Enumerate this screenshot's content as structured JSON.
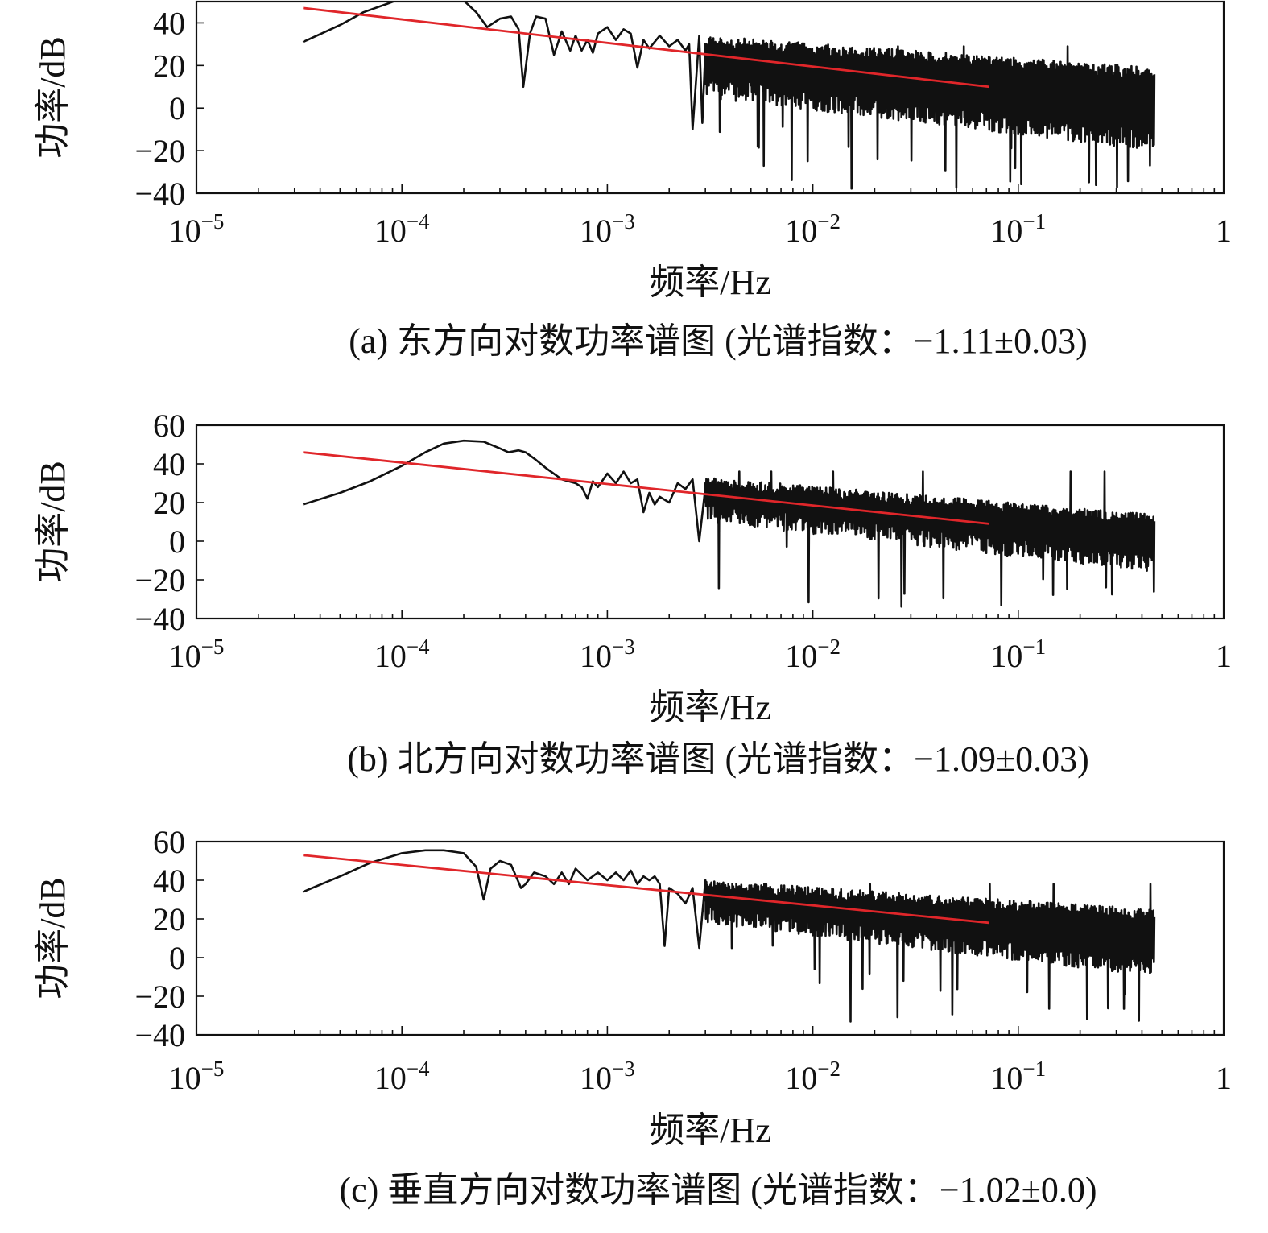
{
  "chart_data": [
    {
      "type": "line",
      "panel": "a",
      "caption": "(a) 东方向对数功率谱图 (光谱指数：−1.11±0.03)",
      "xlabel": "频率/Hz",
      "ylabel": "功率/dB",
      "xscale": "log",
      "xlim": [
        1e-05,
        1
      ],
      "ylim": [
        -40,
        50
      ],
      "xticks": [
        {
          "value": 1e-05,
          "base": "10",
          "exp": "−5"
        },
        {
          "value": 0.0001,
          "base": "10",
          "exp": "−4"
        },
        {
          "value": 0.001,
          "base": "10",
          "exp": "−3"
        },
        {
          "value": 0.01,
          "base": "10",
          "exp": "−2"
        },
        {
          "value": 0.1,
          "base": "10",
          "exp": "−1"
        },
        {
          "value": 1,
          "base": "1",
          "exp": ""
        }
      ],
      "yticks": [
        -40,
        -20,
        0,
        20,
        40
      ],
      "ytick_labels": [
        "−40",
        "−20",
        "0",
        "20",
        "40"
      ],
      "spectrum_color": "#111111",
      "fit_color": "#e0262a",
      "series": [
        {
          "role": "spectrum",
          "x": [
            3.3e-05,
            5e-05,
            6.5e-05,
            8.5e-05,
            0.0001,
            0.00012,
            0.00014,
            0.00017,
            0.0002,
            0.00023,
            0.00026,
            0.0003,
            0.00034,
            0.00037,
            0.00039,
            0.00042,
            0.00045,
            0.0005,
            0.00055,
            0.0006,
            0.00066,
            0.0007,
            0.00075,
            0.0008,
            0.00085,
            0.0009,
            0.001,
            0.0011,
            0.0012,
            0.0013,
            0.0014,
            0.0015,
            0.0016,
            0.0018,
            0.002,
            0.0022,
            0.0024,
            0.0025,
            0.0026,
            0.0028,
            0.0029,
            0.003
          ],
          "y": [
            31,
            39,
            45,
            49,
            51.5,
            52.5,
            53,
            52.5,
            50.5,
            45,
            38,
            42,
            43,
            37,
            10,
            35,
            43,
            42,
            25,
            36,
            27,
            34,
            27,
            32,
            26,
            35,
            38,
            32,
            37,
            35,
            19,
            32,
            28,
            34,
            29,
            32,
            27,
            30,
            -10,
            34,
            -7,
            28
          ]
        },
        {
          "role": "power-law fit",
          "x": [
            3.3e-05,
            0.072
          ],
          "y": [
            47,
            10
          ]
        }
      ],
      "noise_band": {
        "x_range": [
          0.003,
          0.46
        ],
        "upper_start": 34,
        "upper_end": 19,
        "lower_start": 5,
        "lower_end": -20,
        "max_peak": 29,
        "min_dip": -33
      }
    },
    {
      "type": "line",
      "panel": "b",
      "caption": "(b) 北方向对数功率谱图 (光谱指数：−1.09±0.03)",
      "xlabel": "频率/Hz",
      "ylabel": "功率/dB",
      "xscale": "log",
      "xlim": [
        1e-05,
        1
      ],
      "ylim": [
        -40,
        60
      ],
      "xticks": [
        {
          "value": 1e-05,
          "base": "10",
          "exp": "−5"
        },
        {
          "value": 0.0001,
          "base": "10",
          "exp": "−4"
        },
        {
          "value": 0.001,
          "base": "10",
          "exp": "−3"
        },
        {
          "value": 0.01,
          "base": "10",
          "exp": "−2"
        },
        {
          "value": 0.1,
          "base": "10",
          "exp": "−1"
        },
        {
          "value": 1,
          "base": "1",
          "exp": ""
        }
      ],
      "yticks": [
        -40,
        -20,
        0,
        20,
        40,
        60
      ],
      "ytick_labels": [
        "−40",
        "−20",
        "0",
        "20",
        "40",
        "60"
      ],
      "spectrum_color": "#111111",
      "fit_color": "#e0262a",
      "series": [
        {
          "role": "spectrum",
          "x": [
            3.3e-05,
            5e-05,
            7e-05,
            0.0001,
            0.00013,
            0.00016,
            0.0002,
            0.00025,
            0.0003,
            0.00033,
            0.00037,
            0.0004,
            0.00045,
            0.0005,
            0.0006,
            0.0007,
            0.00075,
            0.0008,
            0.00085,
            0.0009,
            0.001,
            0.0011,
            0.0012,
            0.0013,
            0.0014,
            0.0015,
            0.0016,
            0.0017,
            0.0018,
            0.002,
            0.0022,
            0.0024,
            0.0026,
            0.0028,
            0.003
          ],
          "y": [
            19,
            25,
            31,
            39,
            46,
            50.5,
            52,
            51.5,
            48,
            46,
            47,
            46,
            42,
            38,
            32,
            30,
            28,
            22,
            31,
            28,
            35,
            30,
            36,
            30,
            32,
            15,
            25,
            19,
            23,
            20,
            30,
            27,
            32,
            0,
            28
          ]
        },
        {
          "role": "power-law fit",
          "x": [
            3.3e-05,
            0.072
          ],
          "y": [
            46,
            9
          ]
        }
      ],
      "noise_band": {
        "x_range": [
          0.003,
          0.46
        ],
        "upper_start": 33,
        "upper_end": 14,
        "lower_start": 10,
        "lower_end": -16,
        "max_peak": 36,
        "min_dip": -29
      }
    },
    {
      "type": "line",
      "panel": "c",
      "caption": "(c) 垂直方向对数功率谱图 (光谱指数：−1.02±0.0)",
      "xlabel": "频率/Hz",
      "ylabel": "功率/dB",
      "xscale": "log",
      "xlim": [
        1e-05,
        1
      ],
      "ylim": [
        -40,
        60
      ],
      "xticks": [
        {
          "value": 1e-05,
          "base": "10",
          "exp": "−5"
        },
        {
          "value": 0.0001,
          "base": "10",
          "exp": "−4"
        },
        {
          "value": 0.001,
          "base": "10",
          "exp": "−3"
        },
        {
          "value": 0.01,
          "base": "10",
          "exp": "−2"
        },
        {
          "value": 0.1,
          "base": "10",
          "exp": "−1"
        },
        {
          "value": 1,
          "base": "1",
          "exp": ""
        }
      ],
      "yticks": [
        -40,
        -20,
        0,
        20,
        40,
        60
      ],
      "ytick_labels": [
        "−40",
        "−20",
        "0",
        "20",
        "40",
        "60"
      ],
      "spectrum_color": "#111111",
      "fit_color": "#e0262a",
      "series": [
        {
          "role": "spectrum",
          "x": [
            3.3e-05,
            5e-05,
            7e-05,
            0.0001,
            0.00013,
            0.00016,
            0.0002,
            0.00023,
            0.00025,
            0.00027,
            0.0003,
            0.00034,
            0.00038,
            0.0004,
            0.00044,
            0.0005,
            0.00055,
            0.0006,
            0.00065,
            0.0007,
            0.0008,
            0.0009,
            0.001,
            0.0011,
            0.0012,
            0.0013,
            0.0014,
            0.0015,
            0.0016,
            0.0017,
            0.0018,
            0.0019,
            0.002,
            0.0022,
            0.0024,
            0.0026,
            0.0028,
            0.003
          ],
          "y": [
            34,
            42,
            49,
            54,
            55.5,
            55.5,
            54,
            47,
            30,
            46,
            50,
            48,
            36,
            38,
            44,
            42,
            38,
            44,
            38,
            46,
            40,
            44,
            40,
            44,
            40,
            45,
            38,
            42,
            40,
            42,
            38,
            6,
            36,
            33,
            28,
            36,
            5,
            40
          ]
        },
        {
          "role": "power-law fit",
          "x": [
            3.3e-05,
            0.072
          ],
          "y": [
            53,
            18
          ]
        }
      ],
      "noise_band": {
        "x_range": [
          0.003,
          0.46
        ],
        "upper_start": 40,
        "upper_end": 25,
        "lower_start": 18,
        "lower_end": -10,
        "max_peak": 38,
        "min_dip": -28
      }
    }
  ]
}
